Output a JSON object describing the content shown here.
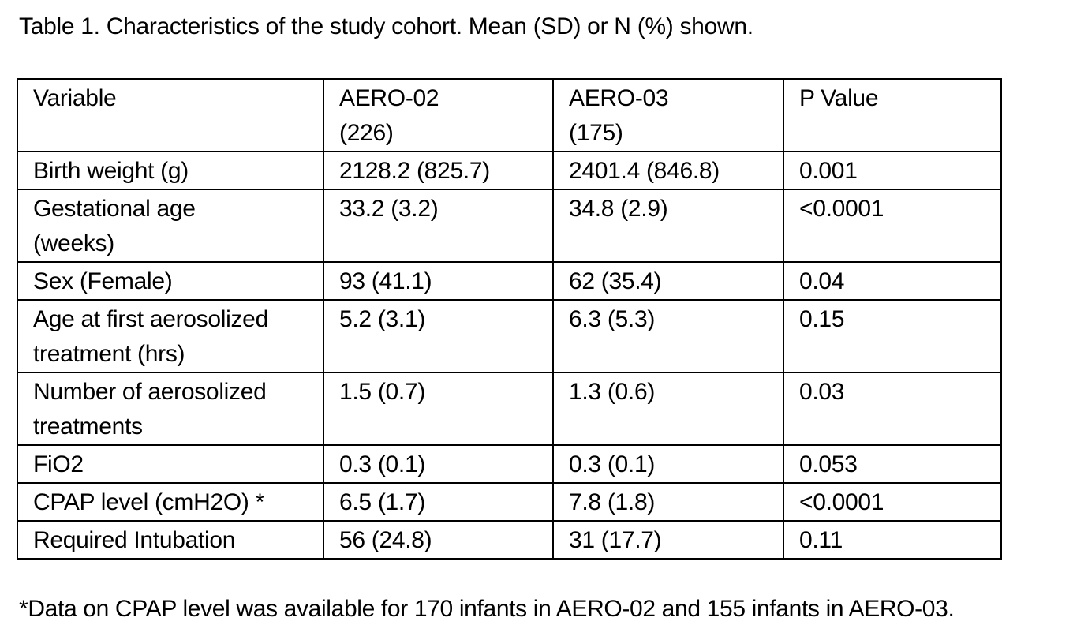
{
  "caption": "Table 1. Characteristics of the study cohort. Mean (SD) or N (%) shown.",
  "table": {
    "header": {
      "variable": "Variable",
      "group1_name": "AERO-02",
      "group1_n": "(226)",
      "group2_name": "AERO-03",
      "group2_n": "(175)",
      "p_value": "P Value"
    },
    "rows": [
      {
        "variable": [
          "Birth weight (g)"
        ],
        "aero02": "2128.2 (825.7)",
        "aero03": "2401.4 (846.8)",
        "p": "0.001"
      },
      {
        "variable": [
          "Gestational age",
          "(weeks)"
        ],
        "aero02": "33.2 (3.2)",
        "aero03": "34.8 (2.9)",
        "p": "<0.0001"
      },
      {
        "variable": [
          "Sex (Female)"
        ],
        "aero02": "93 (41.1)",
        "aero03": "62 (35.4)",
        "p": "0.04"
      },
      {
        "variable": [
          "Age at first aerosolized",
          "treatment (hrs)"
        ],
        "aero02": "5.2 (3.1)",
        "aero03": "6.3 (5.3)",
        "p": "0.15"
      },
      {
        "variable": [
          "Number of aerosolized",
          "treatments"
        ],
        "aero02": "1.5 (0.7)",
        "aero03": "1.3 (0.6)",
        "p": "0.03"
      },
      {
        "variable": [
          "FiO2"
        ],
        "aero02": "0.3 (0.1)",
        "aero03": "0.3 (0.1)",
        "p": "0.053"
      },
      {
        "variable": [
          "CPAP level (cmH2O) *"
        ],
        "aero02": "6.5 (1.7)",
        "aero03": "7.8 (1.8)",
        "p": "<0.0001"
      },
      {
        "variable": [
          "Required Intubation"
        ],
        "aero02": "56 (24.8)",
        "aero03": "31 (17.7)",
        "p": "0.11"
      }
    ]
  },
  "footnote": "*Data on CPAP level was available for 170 infants in AERO-02 and 155 infants in AERO-03."
}
